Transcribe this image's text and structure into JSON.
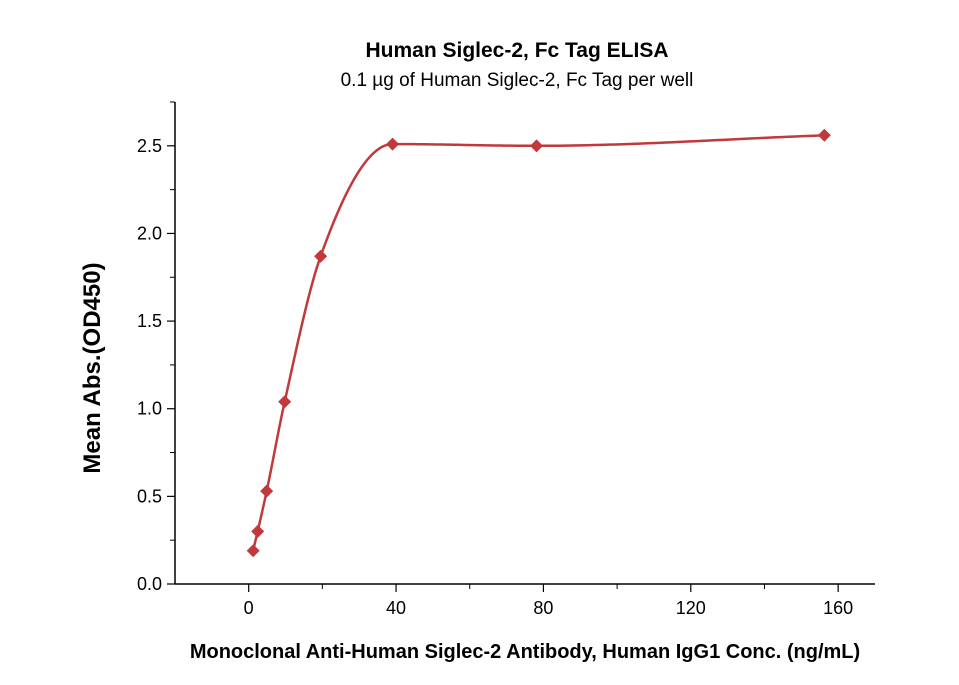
{
  "chart_data": {
    "type": "scatter",
    "title": "Human Siglec-2, Fc Tag ELISA",
    "subtitle": "0.1 µg of Human Siglec-2, Fc Tag per well",
    "xlabel": "Monoclonal Anti-Human Siglec-2 Antibody, Human IgG1 Conc. (ng/mL)",
    "ylabel": "Mean Abs.(OD450)",
    "xlim": [
      -20,
      170
    ],
    "ylim": [
      0,
      2.75
    ],
    "x_ticks": [
      0,
      40,
      80,
      120,
      160
    ],
    "x_tick_labels": [
      "0",
      "40",
      "80",
      "120",
      "160"
    ],
    "y_ticks": [
      0,
      0.5,
      1.0,
      1.5,
      2.0,
      2.5
    ],
    "y_tick_labels": [
      "0.0",
      "0.5",
      "1.0",
      "1.5",
      "2.0",
      "2.5"
    ],
    "grid": false,
    "series": [
      {
        "x": [
          1.22,
          2.44,
          4.88,
          9.77,
          19.53,
          39.06,
          78.13,
          156.25
        ],
        "y": [
          0.19,
          0.3,
          0.53,
          1.04,
          1.87,
          2.51,
          2.5,
          2.56
        ],
        "marker": "diamond",
        "color": "#c0393b",
        "fit_line": true
      }
    ]
  }
}
